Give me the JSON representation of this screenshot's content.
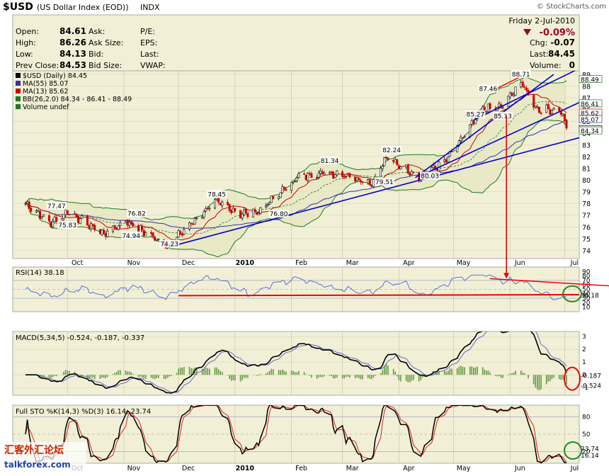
{
  "header": {
    "symbol": "$USD",
    "name": "(US Dollar Index (EOD))",
    "exchange": "INDX",
    "watermark": "© StockCharts.com",
    "date": "Friday  2-Jul-2010",
    "change_pct": "-0.09%",
    "quote_left": [
      {
        "label": "Open:",
        "value": "84.61"
      },
      {
        "label": "High:",
        "value": "86.26"
      },
      {
        "label": "Low:",
        "value": "84.13"
      },
      {
        "label": "Prev Close:",
        "value": "84.53"
      }
    ],
    "quote_mid": [
      "Ask:",
      "Ask Size:",
      "Bid:",
      "Bid Size:"
    ],
    "quote_mid2": [
      "P/E:",
      "EPS:",
      "Last:",
      "VWAP:"
    ],
    "quote_right": [
      {
        "label": "Chg:",
        "value": "-0.07"
      },
      {
        "label": "Last:",
        "value": "84.45"
      },
      {
        "label": "Volume:",
        "value": "0"
      }
    ]
  },
  "colors": {
    "panel_bg": "#f1f0d6",
    "price_candles": "#cc0000",
    "ma55": "#3333aa",
    "ma13": "#cc0000",
    "bband": "#227722",
    "trend": "#0000cc",
    "rsi": "#4466dd",
    "annot_red": "#ee0000",
    "annot_green": "#228822"
  },
  "chart_data": [
    {
      "type": "line",
      "panel": "price",
      "legend": [
        "$USD (Daily) 84.45",
        "MA(55) 85.07",
        "MA(13) 85.62",
        "BB(26,2.0) 84.34 - 86.41 - 88.49",
        "Volume undef"
      ],
      "x_ticks": [
        "Oct",
        "Nov",
        "Dec",
        "2010",
        "Feb",
        "Mar",
        "Apr",
        "May",
        "Jun",
        "Jul"
      ],
      "y_ticks": [
        74,
        75,
        76,
        77,
        78,
        79,
        80,
        81,
        82,
        83,
        84,
        85,
        86,
        87,
        88,
        89
      ],
      "ylim": [
        73.3,
        89.3
      ],
      "price_points": [
        {
          "date": "2009-09-08",
          "price": 78.0
        },
        {
          "date": "2009-09-22",
          "price": 76.3
        },
        {
          "date": "2009-10-01",
          "price": 77.3
        },
        {
          "date": "2009-10-21",
          "price": 75.4
        },
        {
          "date": "2009-11-02",
          "price": 76.5
        },
        {
          "date": "2009-11-25",
          "price": 74.4
        },
        {
          "date": "2009-12-15",
          "price": 77.3
        },
        {
          "date": "2009-12-21",
          "price": 78.2
        },
        {
          "date": "2010-01-04",
          "price": 77.1
        },
        {
          "date": "2010-01-14",
          "price": 77.3
        },
        {
          "date": "2010-02-04",
          "price": 80.2
        },
        {
          "date": "2010-02-16",
          "price": 80.6
        },
        {
          "date": "2010-03-02",
          "price": 80.5
        },
        {
          "date": "2010-03-17",
          "price": 79.7
        },
        {
          "date": "2010-03-25",
          "price": 81.9
        },
        {
          "date": "2010-04-12",
          "price": 80.3
        },
        {
          "date": "2010-04-26",
          "price": 81.5
        },
        {
          "date": "2010-05-17",
          "price": 86.0
        },
        {
          "date": "2010-05-27",
          "price": 86.2
        },
        {
          "date": "2010-06-07",
          "price": 88.3
        },
        {
          "date": "2010-06-16",
          "price": 86.0
        },
        {
          "date": "2010-06-22",
          "price": 86.0
        },
        {
          "date": "2010-06-29",
          "price": 85.9
        },
        {
          "date": "2010-07-02",
          "price": 84.45
        }
      ],
      "annotations": [
        {
          "label": "77.47",
          "date": "2009-09-25",
          "price": 77.47
        },
        {
          "label": "75.83",
          "date": "2009-10-01",
          "price": 75.83
        },
        {
          "label": "76.82",
          "date": "2009-11-08",
          "price": 76.82
        },
        {
          "label": "74.94",
          "date": "2009-11-05",
          "price": 74.94
        },
        {
          "label": "74.23",
          "date": "2009-11-26",
          "price": 74.23
        },
        {
          "label": "78.45",
          "date": "2009-12-22",
          "price": 78.45
        },
        {
          "label": "76.80",
          "date": "2010-01-25",
          "price": 76.8
        },
        {
          "label": "81.34",
          "date": "2010-02-22",
          "price": 81.34
        },
        {
          "label": "79.51",
          "date": "2010-03-24",
          "price": 79.51
        },
        {
          "label": "82.24",
          "date": "2010-03-28",
          "price": 82.24
        },
        {
          "label": "80.03",
          "date": "2010-04-18",
          "price": 80.03
        },
        {
          "label": "85.27",
          "date": "2010-05-13",
          "price": 85.27
        },
        {
          "label": "87.46",
          "date": "2010-05-20",
          "price": 87.46
        },
        {
          "label": "85.13",
          "date": "2010-05-28",
          "price": 85.13
        },
        {
          "label": "88.71",
          "date": "2010-06-07",
          "price": 88.71
        }
      ],
      "right_labels": [
        "88.49",
        "86.41",
        "85.62",
        "85.07",
        "84.45",
        "84.34"
      ]
    },
    {
      "type": "line",
      "panel": "rsi",
      "legend": "RSI(14) 38.18",
      "y_ticks": [
        10,
        20,
        30,
        40,
        50,
        60,
        70,
        80,
        90
      ],
      "ylim": [
        0,
        100
      ],
      "right_labels": [
        "38.18"
      ]
    },
    {
      "type": "line",
      "panel": "macd",
      "legend": [
        "MACD(5,34,5) -0.524, -0.187, -0.337"
      ],
      "y_ticks": [
        -1,
        0,
        1,
        2,
        3
      ],
      "ylim": [
        -1.6,
        3.4
      ],
      "right_labels": [
        "-0.187",
        "-0.524"
      ]
    },
    {
      "type": "line",
      "panel": "stochastic",
      "legend": [
        "Full STO %K(14,3) %D(3) 16.14, 23.74"
      ],
      "y_ticks": [
        20,
        50,
        80
      ],
      "ylim": [
        0,
        100
      ],
      "x_ticks": [
        "Oct",
        "Nov",
        "Dec",
        "2010",
        "Feb",
        "Mar",
        "Apr",
        "May",
        "Jun",
        "Jul"
      ],
      "right_labels": [
        "23.74",
        "16.14"
      ]
    }
  ],
  "footer": {
    "logo_cn": "汇客外汇论坛",
    "logo_site": "talkforex.com"
  }
}
